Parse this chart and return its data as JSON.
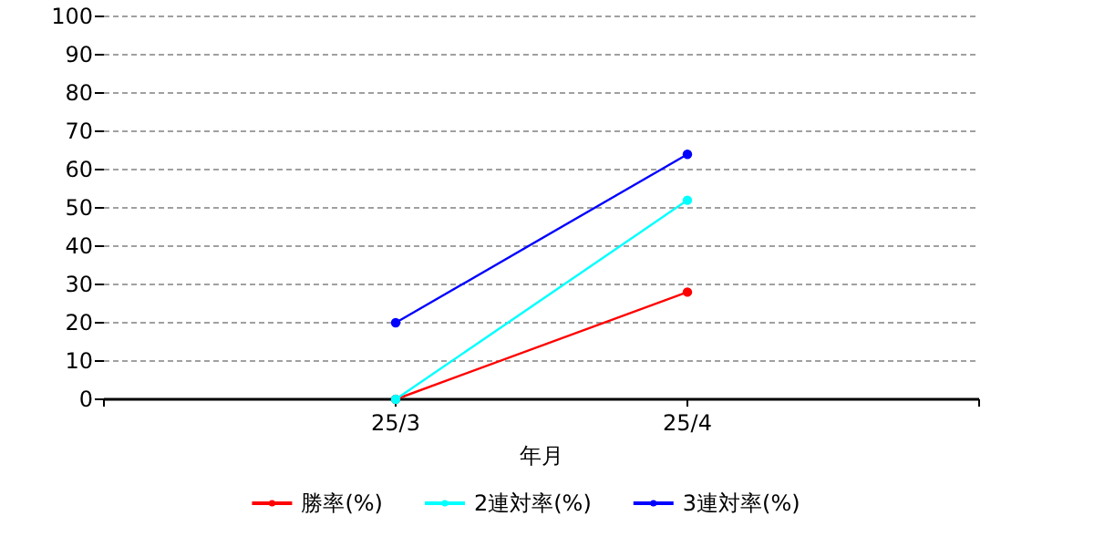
{
  "chart_data": {
    "type": "line",
    "xlabel": "年月",
    "categories": [
      "25/3",
      "25/4"
    ],
    "series": [
      {
        "name": "勝率(%)",
        "color": "#ff0000",
        "values": [
          0,
          28
        ]
      },
      {
        "name": "2連対率(%)",
        "color": "#00ffff",
        "values": [
          0,
          52
        ]
      },
      {
        "name": "3連対率(%)",
        "color": "#0000ff",
        "values": [
          20,
          64
        ]
      }
    ],
    "ylim": [
      0,
      100
    ],
    "yticks": [
      0,
      10,
      20,
      30,
      40,
      50,
      60,
      70,
      80,
      90,
      100
    ],
    "grid": "y",
    "legend": "bottom",
    "marker": "circle",
    "line_style": "solid"
  }
}
